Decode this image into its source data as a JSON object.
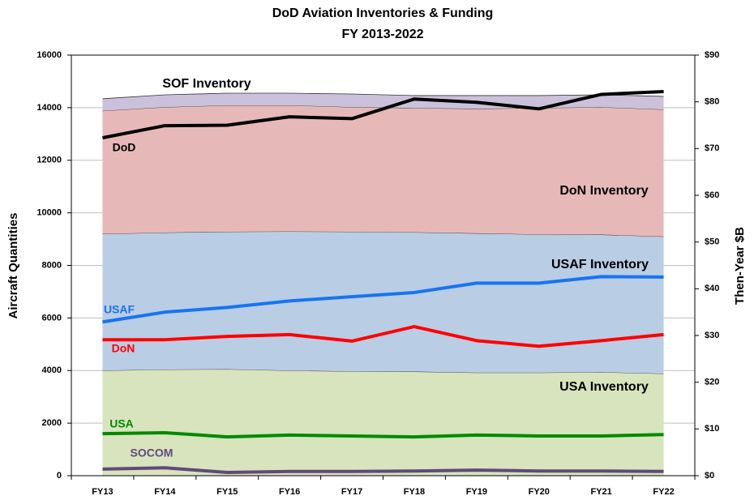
{
  "chart_data": {
    "type": "stacked_area_line",
    "title": "DoD Aviation Inventories & Funding",
    "subtitle": "FY 2013-2022",
    "y_label": "Aircraft Quantities",
    "y2_label": "Then-Year $B",
    "categories": [
      "FY13",
      "FY14",
      "FY15",
      "FY16",
      "FY17",
      "FY18",
      "FY19",
      "FY20",
      "FY21",
      "FY22"
    ],
    "ylim": [
      0,
      16000
    ],
    "yticks": [
      0,
      2000,
      4000,
      6000,
      8000,
      10000,
      12000,
      14000,
      16000
    ],
    "y2lim": [
      0,
      90
    ],
    "y2ticks": [
      {
        "value": 0,
        "label": "$0"
      },
      {
        "value": 10,
        "label": "$10"
      },
      {
        "value": 20,
        "label": "$20"
      },
      {
        "value": 30,
        "label": "$30"
      },
      {
        "value": 40,
        "label": "$40"
      },
      {
        "value": 50,
        "label": "$50"
      },
      {
        "value": 60,
        "label": "$60"
      },
      {
        "value": 70,
        "label": "$70"
      },
      {
        "value": 80,
        "label": "$80"
      },
      {
        "value": 90,
        "label": "$90"
      }
    ],
    "grid": true,
    "series": [
      {
        "name": "USA Inventory",
        "color": "#d7e4bd",
        "stacked": true,
        "values": [
          4000,
          4040,
          4050,
          4000,
          3970,
          3960,
          3920,
          3920,
          3940,
          3880
        ]
      },
      {
        "name": "USAF Inventory",
        "color": "#b9cde5",
        "stacked": true,
        "values": [
          5200,
          5210,
          5230,
          5290,
          5310,
          5300,
          5300,
          5260,
          5230,
          5220
        ]
      },
      {
        "name": "DoN Inventory",
        "color": "#e6b9b8",
        "stacked": true,
        "values": [
          4680,
          4770,
          4810,
          4800,
          4740,
          4730,
          4740,
          4810,
          4850,
          4830
        ]
      },
      {
        "name": "SOF Inventory",
        "color": "#ccc1da",
        "stacked": true,
        "values": [
          460,
          470,
          460,
          460,
          500,
          470,
          500,
          470,
          470,
          500
        ]
      },
      {
        "name": "DoD",
        "color": "#000000",
        "axis": "y2",
        "values": [
          72.3,
          74.9,
          75.0,
          76.8,
          76.4,
          80.6,
          79.9,
          78.5,
          81.6,
          82.2
        ]
      },
      {
        "name": "USAF",
        "color": "#1874f0",
        "axis": "y2",
        "values": [
          32.9,
          35.0,
          36.0,
          37.4,
          38.3,
          39.2,
          41.2,
          41.2,
          42.6,
          42.5
        ]
      },
      {
        "name": "DoN",
        "color": "#ff0000",
        "axis": "y2",
        "values": [
          29.1,
          29.1,
          29.8,
          30.2,
          28.8,
          31.9,
          28.9,
          27.7,
          28.9,
          30.2
        ]
      },
      {
        "name": "USA",
        "color": "#008a00",
        "axis": "y2",
        "values": [
          9.0,
          9.2,
          8.3,
          8.7,
          8.5,
          8.3,
          8.7,
          8.5,
          8.5,
          8.8
        ]
      },
      {
        "name": "SOCOM",
        "color": "#604a7b",
        "axis": "y2",
        "values": [
          1.4,
          1.7,
          0.7,
          0.9,
          0.9,
          1.0,
          1.2,
          1.0,
          1.0,
          0.9
        ]
      }
    ]
  }
}
